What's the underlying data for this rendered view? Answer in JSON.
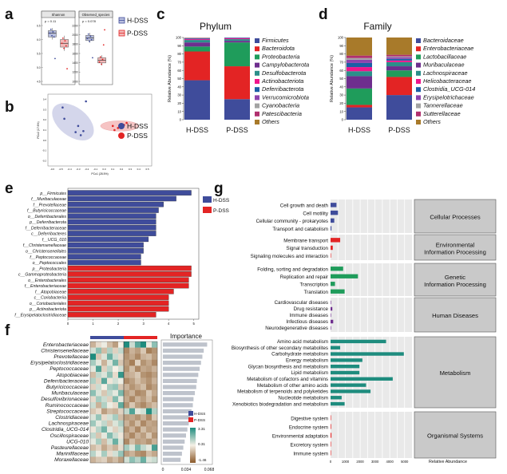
{
  "panel_letters": [
    "a",
    "b",
    "c",
    "d",
    "e",
    "f",
    "g"
  ],
  "colors": {
    "h_dss": "#3F4C9B",
    "p_dss": "#E32424",
    "h_light": "#B8BEDD",
    "p_light": "#F2B8B8",
    "teal": "#1E8C7E",
    "gray_box": "#C9C9C9",
    "heat_high": "#1E8C7E",
    "heat_mid": "#F5F0E6",
    "heat_low": "#8C5A2B"
  },
  "chart_data": [
    {
      "panel": "a",
      "type": "box",
      "subplots": [
        {
          "title": "Shannon",
          "p_text": "p = 0.11",
          "yticks": [
            "6.5",
            "6.0",
            "5.5",
            "5.0",
            "4.5"
          ],
          "h": {
            "q1": 6.15,
            "median": 6.3,
            "q3": 6.4,
            "min": 6.05,
            "max": 6.5,
            "points": [
              6.3,
              6.45,
              6.2,
              6.35,
              6.15,
              5.3
            ]
          },
          "p": {
            "q1": 5.75,
            "median": 5.9,
            "q3": 6.05,
            "min": 5.6,
            "max": 6.2,
            "points": [
              5.9,
              6.1,
              5.7,
              6.0,
              5.8,
              4.9
            ]
          },
          "ylim": [
            4.4,
            6.6
          ]
        },
        {
          "title": "Observed_species",
          "p_text": "p = 0.078",
          "yticks": [
            "2200",
            "2000",
            "1800",
            "1600",
            "1400",
            "1200",
            "1000"
          ],
          "h": {
            "q1": 1900,
            "median": 1960,
            "q3": 2020,
            "min": 1850,
            "max": 2080,
            "points": [
              1950,
              2050,
              1880,
              2000,
              1920,
              1500
            ]
          },
          "p": {
            "q1": 1380,
            "median": 1440,
            "q3": 1500,
            "min": 1320,
            "max": 1560,
            "points": [
              1400,
              1520,
              1350,
              1460,
              1800,
              2150
            ]
          },
          "ylim": [
            950,
            2250
          ]
        }
      ],
      "legend": [
        "H-DSS",
        "P-DSS"
      ]
    },
    {
      "panel": "b",
      "type": "scatter",
      "xlabel": "PCo1 (28.5%)",
      "ylabel": "PCo2 (17.6%)",
      "xticks": [
        "-0.6",
        "-0.5",
        "-0.4",
        "-0.3",
        "-0.2",
        "-0.1",
        "0.0",
        "0.1",
        "0.2",
        "0.3",
        "0.4",
        "0.5"
      ],
      "yticks": [
        "0.4",
        "0.3",
        "0.2",
        "0.1",
        "0.0",
        "-0.1",
        "-0.2"
      ],
      "xlim": [
        -0.65,
        0.55
      ],
      "ylim": [
        -0.25,
        0.45
      ],
      "series": [
        {
          "name": "H-DSS",
          "points": [
            [
              -0.48,
              0.32
            ],
            [
              -0.46,
              0.21
            ],
            [
              -0.33,
              0.08
            ],
            [
              -0.27,
              0.05
            ],
            [
              -0.24,
              0.09
            ],
            [
              -0.3,
              0.14
            ],
            [
              -0.21,
              0.38
            ]
          ]
        },
        {
          "name": "P-DSS",
          "points": [
            [
              0.1,
              0.14
            ],
            [
              0.16,
              0.12
            ],
            [
              0.2,
              0.16
            ],
            [
              0.23,
              0.15
            ],
            [
              0.26,
              0.17
            ],
            [
              0.12,
              0.1
            ]
          ]
        }
      ]
    },
    {
      "panel": "c",
      "type": "bar",
      "stacked": true,
      "title": "Phylum",
      "ylabel": "Relative Abundance (%)",
      "yticks": [
        "0",
        "10",
        "20",
        "30",
        "40",
        "50",
        "60",
        "70",
        "80",
        "90",
        "100"
      ],
      "ylim": [
        0,
        100
      ],
      "categories": [
        "H-DSS",
        "P-DSS"
      ],
      "series": [
        {
          "name": "Firmicutes",
          "color": "#3F4C9B",
          "values": [
            48,
            25
          ]
        },
        {
          "name": "Bacteroidota",
          "color": "#E32424",
          "values": [
            35,
            40
          ]
        },
        {
          "name": "Proteobacteria",
          "color": "#1F9C5B",
          "values": [
            6,
            29
          ]
        },
        {
          "name": "Campylobacterota",
          "color": "#6E2E8E",
          "values": [
            5,
            2
          ]
        },
        {
          "name": "Desulfobacterota",
          "color": "#2B8F8A",
          "values": [
            3,
            2
          ]
        },
        {
          "name": "Actinobacteriota",
          "color": "#F0168C",
          "values": [
            1,
            1
          ]
        },
        {
          "name": "Deferribacterota",
          "color": "#1B5FA6",
          "values": [
            0.7,
            0.5
          ]
        },
        {
          "name": "Verrucomicrobiota",
          "color": "#8E44AD",
          "values": [
            0.5,
            0.3
          ]
        },
        {
          "name": "Cyanobacteria",
          "color": "#A3A3A3",
          "values": [
            0.3,
            0.1
          ]
        },
        {
          "name": "Patescibacteria",
          "color": "#B0306E",
          "values": [
            0.3,
            0.1
          ]
        },
        {
          "name": "Others",
          "color": "#A87A2A",
          "values": [
            0.2,
            0.0
          ]
        }
      ]
    },
    {
      "panel": "d",
      "type": "bar",
      "stacked": true,
      "title": "Family",
      "ylabel": "Relative Abundance (%)",
      "yticks": [
        "0",
        "10",
        "20",
        "30",
        "40",
        "50",
        "60",
        "70",
        "80",
        "90",
        "100"
      ],
      "ylim": [
        0,
        100
      ],
      "categories": [
        "H-DSS",
        "P-DSS"
      ],
      "series": [
        {
          "name": "Bacteroidaceae",
          "color": "#3F4C9B",
          "values": [
            15,
            30
          ]
        },
        {
          "name": "Enterobacteriaceae",
          "color": "#E32424",
          "values": [
            3,
            22
          ]
        },
        {
          "name": "Lactobacillaceae",
          "color": "#1F9C5B",
          "values": [
            20,
            8
          ]
        },
        {
          "name": "Muribaculaceae",
          "color": "#6E2E8E",
          "values": [
            15,
            5
          ]
        },
        {
          "name": "Lachnospiraceae",
          "color": "#2B8F8A",
          "values": [
            6,
            5
          ]
        },
        {
          "name": "Helicobacteraceae",
          "color": "#F0168C",
          "values": [
            5,
            2
          ]
        },
        {
          "name": "Clostridia_UCG-014",
          "color": "#1B5FA6",
          "values": [
            5,
            2
          ]
        },
        {
          "name": "Erysipelotrichaceae",
          "color": "#8E44AD",
          "values": [
            4,
            2
          ]
        },
        {
          "name": "Tannerellaceae",
          "color": "#A3A3A3",
          "values": [
            2,
            1
          ]
        },
        {
          "name": "Sutterellaceae",
          "color": "#B0306E",
          "values": [
            3,
            2
          ]
        },
        {
          "name": "Others",
          "color": "#A87A2A",
          "values": [
            22,
            21
          ]
        }
      ]
    },
    {
      "panel": "e",
      "type": "bar",
      "orientation": "horizontal",
      "xticks": [
        "0",
        "1",
        "2",
        "3",
        "4",
        "5"
      ],
      "xlim": [
        0,
        5.2
      ],
      "legend": [
        "H-DSS",
        "P-DSS"
      ],
      "categories": [
        "p__Firmicutes",
        "f__Muribaculaceae",
        "f__Prevotellaceae",
        "f__Butyricicoccaceae",
        "o__Deferribacterales",
        "p__Deferribacterota",
        "f__Deferribacteraceae",
        "c__Deferribacteres",
        "f__UCG_010",
        "f__Christensenellaceae",
        "o__Christensenellales",
        "f__Peptococcaceae",
        "o__Peptococcales",
        "p__Proteobacteria",
        "c__Gammaproteobacteria",
        "o__Enterobacterales",
        "f__Enterobacteriaceae",
        "f__Atopobiaceae",
        "c__Coriobacteriia",
        "o__Coriobacteriales",
        "p__Actinobacteriota",
        "f__Erysipelatoclostridiaceae"
      ],
      "values": [
        4.9,
        4.3,
        3.8,
        3.6,
        3.5,
        3.5,
        3.5,
        3.5,
        3.2,
        3.0,
        3.0,
        2.9,
        2.9,
        4.9,
        4.9,
        4.8,
        4.8,
        4.2,
        4.0,
        4.0,
        4.0,
        3.5
      ],
      "groups": [
        "H-DSS",
        "H-DSS",
        "H-DSS",
        "H-DSS",
        "H-DSS",
        "H-DSS",
        "H-DSS",
        "H-DSS",
        "H-DSS",
        "H-DSS",
        "H-DSS",
        "H-DSS",
        "H-DSS",
        "P-DSS",
        "P-DSS",
        "P-DSS",
        "P-DSS",
        "P-DSS",
        "P-DSS",
        "P-DSS",
        "P-DSS",
        "P-DSS"
      ]
    },
    {
      "panel": "f",
      "type": "heatmap",
      "rows": [
        "Enterobacteriaceae",
        "Christensenellaceae",
        "Prevotellaceae",
        "Erysipelatoclostridiaceae",
        "Peptococcaceae",
        "Atopobiaceae",
        "Deferribacteraceae",
        "Butyricicoccaceae",
        "Muribaculaceae",
        "Desulfovibrionaceae",
        "Ruminococcaceae",
        "Streptococcaceae",
        "Clostridiaceae",
        "Lachnospiraceae",
        "Clostridia_UCG-014",
        "Oscillospiraceae",
        "UCG-010",
        "Pasteurellaceae",
        "Marinifilaceae",
        "Moraxellaceae"
      ],
      "importance_title": "Importance",
      "importance_ticks": [
        "0",
        "0.034",
        "0.068"
      ],
      "importance_xlim": [
        0,
        0.068
      ],
      "importance": [
        0.065,
        0.06,
        0.058,
        0.056,
        0.054,
        0.052,
        0.05,
        0.049,
        0.047,
        0.045,
        0.044,
        0.042,
        0.04,
        0.038,
        0.036,
        0.034,
        0.032,
        0.03,
        0.028,
        0.026
      ],
      "legend": [
        "H-DSS",
        "P-DSS"
      ],
      "colorbar_ticks": [
        "3.31",
        "0.31",
        "-1.46"
      ],
      "colorbar_range": [
        -1.46,
        3.31
      ],
      "n_h": 6,
      "n_p": 6,
      "matrix": [
        [
          -0.6,
          -0.2,
          0.1,
          -0.5,
          -0.8,
          0.0,
          2.9,
          0.5,
          1.8,
          2.5,
          0.1,
          1.2
        ],
        [
          0.4,
          1.2,
          -0.5,
          0.8,
          -0.3,
          0.6,
          -1.0,
          -0.6,
          -0.8,
          -0.4,
          -1.1,
          -0.9
        ],
        [
          2.6,
          -0.4,
          0.3,
          1.6,
          0.5,
          -0.2,
          -0.9,
          -0.7,
          -1.0,
          -0.6,
          -0.5,
          -0.8
        ],
        [
          0.9,
          0.2,
          -0.6,
          0.3,
          1.5,
          -0.4,
          -0.8,
          -1.1,
          -0.3,
          -0.9,
          -0.7,
          -1.0
        ],
        [
          0.2,
          1.9,
          -0.3,
          0.7,
          0.0,
          0.4,
          -0.9,
          -0.5,
          -1.0,
          -0.7,
          -0.8,
          -0.6
        ],
        [
          -0.5,
          0.6,
          0.3,
          1.2,
          -0.2,
          2.2,
          -0.7,
          -0.6,
          -0.4,
          -0.9,
          -1.0,
          -0.8
        ],
        [
          0.8,
          -0.3,
          1.8,
          -0.1,
          0.4,
          0.1,
          -1.0,
          -0.8,
          -0.5,
          -0.7,
          -0.9,
          -0.6
        ],
        [
          -0.3,
          0.5,
          0.0,
          0.9,
          1.1,
          -0.4,
          -0.6,
          -0.9,
          -0.7,
          -0.5,
          -1.0,
          -0.8
        ],
        [
          1.2,
          0.3,
          -0.4,
          0.6,
          0.2,
          1.4,
          -0.8,
          -0.6,
          -1.0,
          -0.9,
          -0.4,
          -0.7
        ],
        [
          -0.2,
          0.9,
          0.5,
          -0.3,
          1.3,
          0.2,
          -0.7,
          -1.0,
          -0.6,
          -0.8,
          -0.5,
          -0.9
        ],
        [
          0.5,
          -0.6,
          0.8,
          0.1,
          -0.2,
          1.7,
          -0.9,
          -0.4,
          -0.8,
          -1.0,
          -0.7,
          -0.5
        ],
        [
          -0.4,
          -0.2,
          -0.8,
          -0.5,
          -0.6,
          -0.3,
          0.6,
          1.9,
          0.2,
          0.4,
          2.4,
          0.8
        ],
        [
          0.3,
          1.1,
          -0.2,
          0.4,
          0.9,
          -0.5,
          -0.8,
          -0.7,
          -0.9,
          -0.6,
          -1.0,
          -0.4
        ],
        [
          1.0,
          0.2,
          0.6,
          -0.4,
          0.3,
          0.8,
          -0.6,
          -0.9,
          -0.5,
          -1.0,
          -0.7,
          -0.8
        ],
        [
          -0.1,
          0.7,
          1.5,
          0.2,
          -0.3,
          0.4,
          -0.9,
          -0.6,
          -1.0,
          -0.5,
          -0.8,
          -0.7
        ],
        [
          0.6,
          -0.4,
          0.2,
          1.3,
          0.5,
          -0.1,
          -0.7,
          -1.0,
          -0.6,
          -0.8,
          -0.4,
          -0.9
        ],
        [
          0.2,
          0.9,
          -0.5,
          0.4,
          1.6,
          0.3,
          -1.0,
          -0.5,
          -0.8,
          -0.7,
          -0.9,
          -0.6
        ],
        [
          -0.5,
          -0.3,
          -0.7,
          -0.4,
          -0.6,
          -0.2,
          0.9,
          0.3,
          1.4,
          0.6,
          0.2,
          2.0
        ],
        [
          0.7,
          0.1,
          0.9,
          -0.2,
          0.4,
          1.1,
          -0.8,
          -0.6,
          -0.9,
          -1.0,
          -0.5,
          -0.7
        ],
        [
          -0.6,
          -0.4,
          -0.3,
          -0.7,
          -0.5,
          -0.8,
          0.4,
          1.2,
          0.7,
          1.6,
          0.3,
          0.5
        ]
      ]
    },
    {
      "panel": "g",
      "type": "bar",
      "orientation": "horizontal",
      "xlabel": "Relative Abundance",
      "xticks": [
        "0",
        "1000",
        "2000",
        "3000",
        "4000",
        "5000"
      ],
      "xlim": [
        0,
        5500
      ],
      "groups": [
        {
          "name": "Cellular Processes",
          "color": "#3F4C9B",
          "categories": [
            "Cell growth and death",
            "Cell motility",
            "Cellular community - prokaryotes",
            "Transport and catabolism"
          ],
          "values": [
            400,
            500,
            250,
            60
          ]
        },
        {
          "name": "Environmental Information Processing",
          "color": "#E32424",
          "categories": [
            "Membrane transport",
            "Signal transduction",
            "Signaling molecules and interaction"
          ],
          "values": [
            650,
            150,
            10
          ]
        },
        {
          "name": "Genetic Information Processing",
          "color": "#1F9C5B",
          "categories": [
            "Folding, sorting and degradation",
            "Replication and repair",
            "Transcription",
            "Translation"
          ],
          "values": [
            850,
            1850,
            300,
            950
          ]
        },
        {
          "name": "Human Diseases",
          "color": "#6E2E8E",
          "categories": [
            "Cardiovascular diseases",
            "Drug resistance",
            "Immune diseases",
            "Infectious diseases",
            "Neurodegenerative diseases"
          ],
          "values": [
            10,
            120,
            10,
            180,
            20
          ]
        },
        {
          "name": "Metabolism",
          "color": "#1E8C7E",
          "categories": [
            "Amino acid metabolism",
            "Biosynthesis of other secondary metabolites",
            "Carbohydrate metabolism",
            "Energy metabolism",
            "Glycan biosynthesis and metabolism",
            "Lipid metabolism",
            "Metabolism of cofactors and vitamins",
            "Metabolism of other amino acids",
            "Metabolism of terpenoids and polyketides",
            "Nucleotide metabolism",
            "Xenobiotics biodegradation and metabolism"
          ],
          "values": [
            3750,
            650,
            4950,
            2150,
            1950,
            1950,
            4200,
            2400,
            2700,
            750,
            950
          ]
        },
        {
          "name": "Organismal Systems",
          "color": "#E32424",
          "categories": [
            "Digestive system",
            "Endocrine system",
            "Environmental adaptation",
            "Excretory system",
            "Immune system"
          ],
          "values": [
            15,
            40,
            60,
            10,
            15
          ]
        }
      ]
    }
  ]
}
